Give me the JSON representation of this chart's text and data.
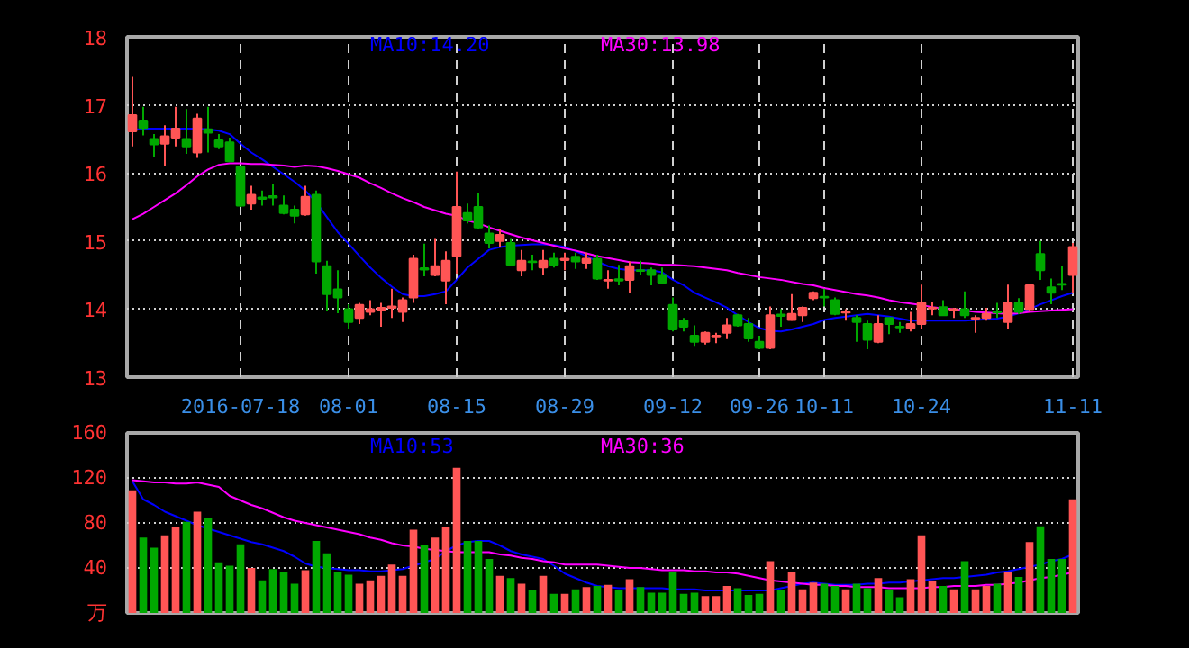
{
  "chart_data": [
    {
      "type": "candlestick",
      "categories": [
        null,
        null,
        null,
        null,
        null,
        null,
        null,
        null,
        null,
        null,
        "2016-07-18",
        null,
        null,
        null,
        null,
        null,
        null,
        null,
        null,
        null,
        "08-01",
        null,
        null,
        null,
        null,
        null,
        null,
        null,
        null,
        null,
        "08-15",
        null,
        null,
        null,
        null,
        null,
        null,
        null,
        null,
        null,
        "08-29",
        null,
        null,
        null,
        null,
        null,
        null,
        null,
        null,
        null,
        "09-12",
        null,
        null,
        null,
        null,
        null,
        null,
        null,
        "09-26",
        null,
        null,
        null,
        null,
        null,
        "10-11",
        null,
        null,
        null,
        null,
        null,
        null,
        null,
        null,
        "10-24",
        null,
        null,
        null,
        null,
        null,
        null,
        null,
        null,
        null,
        null,
        null,
        null,
        null,
        "11-11"
      ],
      "ohlc": [
        [
          16.61,
          17.41,
          16.39,
          16.85
        ],
        [
          16.77,
          16.97,
          16.55,
          16.66
        ],
        [
          16.5,
          16.57,
          16.24,
          16.42
        ],
        [
          16.43,
          16.7,
          16.1,
          16.54
        ],
        [
          16.52,
          16.97,
          16.39,
          16.65
        ],
        [
          16.5,
          16.94,
          16.28,
          16.39
        ],
        [
          16.3,
          16.87,
          16.22,
          16.8
        ],
        [
          16.64,
          16.97,
          16.3,
          16.59
        ],
        [
          16.48,
          16.57,
          16.35,
          16.39
        ],
        [
          16.45,
          16.52,
          16.16,
          16.17
        ],
        [
          16.09,
          16.1,
          15.5,
          15.52
        ],
        [
          15.55,
          15.81,
          15.46,
          15.68
        ],
        [
          15.64,
          15.74,
          15.52,
          15.62
        ],
        [
          15.66,
          15.83,
          15.52,
          15.64
        ],
        [
          15.52,
          15.67,
          15.39,
          15.41
        ],
        [
          15.46,
          15.52,
          15.26,
          15.37
        ],
        [
          15.39,
          15.81,
          15.37,
          15.65
        ],
        [
          15.68,
          15.74,
          14.52,
          14.7
        ],
        [
          14.63,
          14.71,
          13.98,
          14.22
        ],
        [
          14.29,
          14.57,
          13.94,
          14.17
        ],
        [
          14.0,
          14.07,
          13.7,
          13.81
        ],
        [
          13.87,
          14.09,
          13.78,
          14.06
        ],
        [
          13.96,
          14.13,
          13.91,
          14.0
        ],
        [
          13.99,
          14.09,
          13.74,
          14.02
        ],
        [
          14.02,
          14.3,
          13.87,
          14.04
        ],
        [
          13.96,
          14.17,
          13.81,
          14.13
        ],
        [
          14.17,
          14.8,
          14.09,
          14.74
        ],
        [
          14.6,
          14.96,
          14.48,
          14.58
        ],
        [
          14.5,
          15.03,
          14.48,
          14.63
        ],
        [
          14.42,
          14.85,
          14.07,
          14.71
        ],
        [
          14.78,
          16.02,
          14.52,
          15.5
        ],
        [
          15.41,
          15.55,
          15.26,
          15.3
        ],
        [
          15.5,
          15.7,
          15.17,
          15.2
        ],
        [
          15.11,
          15.23,
          14.89,
          14.97
        ],
        [
          15.0,
          15.17,
          14.91,
          15.09
        ],
        [
          14.97,
          15.03,
          14.63,
          14.65
        ],
        [
          14.57,
          14.87,
          14.48,
          14.71
        ],
        [
          14.7,
          14.8,
          14.57,
          14.69
        ],
        [
          14.61,
          14.87,
          14.5,
          14.71
        ],
        [
          14.74,
          14.83,
          14.61,
          14.65
        ],
        [
          14.72,
          14.83,
          14.57,
          14.74
        ],
        [
          14.77,
          14.83,
          14.59,
          14.7
        ],
        [
          14.68,
          14.83,
          14.59,
          14.74
        ],
        [
          14.74,
          14.8,
          14.43,
          14.45
        ],
        [
          14.42,
          14.57,
          14.3,
          14.43
        ],
        [
          14.44,
          14.65,
          14.35,
          14.42
        ],
        [
          14.43,
          14.7,
          14.24,
          14.63
        ],
        [
          14.57,
          14.71,
          14.5,
          14.56
        ],
        [
          14.57,
          14.61,
          14.35,
          14.5
        ],
        [
          14.5,
          14.61,
          14.37,
          14.39
        ],
        [
          14.06,
          14.17,
          13.67,
          13.7
        ],
        [
          13.83,
          13.87,
          13.67,
          13.74
        ],
        [
          13.61,
          13.76,
          13.46,
          13.52
        ],
        [
          13.52,
          13.67,
          13.48,
          13.65
        ],
        [
          13.6,
          13.65,
          13.5,
          13.61
        ],
        [
          13.65,
          13.87,
          13.56,
          13.76
        ],
        [
          13.91,
          13.93,
          13.74,
          13.76
        ],
        [
          13.78,
          13.87,
          13.52,
          13.57
        ],
        [
          13.52,
          13.61,
          13.41,
          13.43
        ],
        [
          13.43,
          14.04,
          13.41,
          13.91
        ],
        [
          13.92,
          14.0,
          13.74,
          13.9
        ],
        [
          13.84,
          14.22,
          13.83,
          13.93
        ],
        [
          13.91,
          14.04,
          13.81,
          14.02
        ],
        [
          14.16,
          14.26,
          14.13,
          14.24
        ],
        [
          14.18,
          14.3,
          14.04,
          14.17
        ],
        [
          14.13,
          14.17,
          13.91,
          13.93
        ],
        [
          13.95,
          14.0,
          13.83,
          13.96
        ],
        [
          13.87,
          13.91,
          13.52,
          13.81
        ],
        [
          13.78,
          13.83,
          13.41,
          13.55
        ],
        [
          13.52,
          13.91,
          13.5,
          13.78
        ],
        [
          13.87,
          13.87,
          13.63,
          13.78
        ],
        [
          13.74,
          13.81,
          13.65,
          13.73
        ],
        [
          13.72,
          13.96,
          13.67,
          13.78
        ],
        [
          13.78,
          14.36,
          13.7,
          14.09
        ],
        [
          14.01,
          14.1,
          13.91,
          14.02
        ],
        [
          14.03,
          14.13,
          13.9,
          13.91
        ],
        [
          13.99,
          14.02,
          13.87,
          14.0
        ],
        [
          14.0,
          14.26,
          13.87,
          13.91
        ],
        [
          13.86,
          13.91,
          13.65,
          13.87
        ],
        [
          13.87,
          14.02,
          13.83,
          13.93
        ],
        [
          13.96,
          14.09,
          13.87,
          13.95
        ],
        [
          13.81,
          14.36,
          13.7,
          14.09
        ],
        [
          14.09,
          14.16,
          13.93,
          13.96
        ],
        [
          14.0,
          14.35,
          13.98,
          14.35
        ],
        [
          14.81,
          15.0,
          14.43,
          14.57
        ],
        [
          14.32,
          14.45,
          14.07,
          14.24
        ],
        [
          14.37,
          14.63,
          14.28,
          14.36
        ],
        [
          14.5,
          14.97,
          14.24,
          14.91
        ]
      ],
      "colors": [
        "#ff5555",
        "#00a800",
        "#00a800",
        "#ff5555",
        "#ff5555",
        "#00a800",
        "#ff5555",
        "#00a800",
        "#00a800",
        "#00a800",
        "#00a800",
        "#ff5555",
        "#00a800",
        "#00a800",
        "#00a800",
        "#00a800",
        "#ff5555",
        "#00a800",
        "#00a800",
        "#00a800",
        "#00a800",
        "#ff5555",
        "#ff5555",
        "#ff5555",
        "#ff5555",
        "#ff5555",
        "#ff5555",
        "#00a800",
        "#ff5555",
        "#ff5555",
        "#ff5555",
        "#00a800",
        "#00a800",
        "#00a800",
        "#ff5555",
        "#00a800",
        "#ff5555",
        "#00a800",
        "#ff5555",
        "#00a800",
        "#ff5555",
        "#00a800",
        "#ff5555",
        "#00a800",
        "#ff5555",
        "#00a800",
        "#ff5555",
        "#00a800",
        "#00a800",
        "#00a800",
        "#00a800",
        "#00a800",
        "#00a800",
        "#ff5555",
        "#ff5555",
        "#ff5555",
        "#00a800",
        "#00a800",
        "#00a800",
        "#ff5555",
        "#00a800",
        "#ff5555",
        "#ff5555",
        "#ff5555",
        "#00a800",
        "#00a800",
        "#ff5555",
        "#00a800",
        "#00a800",
        "#ff5555",
        "#00a800",
        "#00a800",
        "#ff5555",
        "#ff5555",
        "#ff5555",
        "#00a800",
        "#ff5555",
        "#00a800",
        "#ff5555",
        "#ff5555",
        "#00a800",
        "#ff5555",
        "#00a800",
        "#ff5555",
        "#00a800",
        "#00a800",
        "#00a800",
        "#ff5555"
      ],
      "series": [
        {
          "name": "MA10:14.20",
          "type": "line",
          "color": "#0000ff",
          "values": [
            16.63,
            16.65,
            16.65,
            16.65,
            16.65,
            16.65,
            16.65,
            16.64,
            16.62,
            16.57,
            16.43,
            16.3,
            16.2,
            16.09,
            15.98,
            15.87,
            15.74,
            15.57,
            15.35,
            15.13,
            14.96,
            14.78,
            14.61,
            14.46,
            14.33,
            14.22,
            14.19,
            14.19,
            14.22,
            14.26,
            14.43,
            14.61,
            14.74,
            14.87,
            14.91,
            14.93,
            14.94,
            14.95,
            14.95,
            14.94,
            14.91,
            14.85,
            14.78,
            14.7,
            14.63,
            14.59,
            14.57,
            14.57,
            14.57,
            14.54,
            14.43,
            14.35,
            14.24,
            14.17,
            14.1,
            14.02,
            13.91,
            13.81,
            13.72,
            13.68,
            13.67,
            13.7,
            13.74,
            13.78,
            13.84,
            13.87,
            13.89,
            13.91,
            13.93,
            13.91,
            13.89,
            13.86,
            13.83,
            13.83,
            13.83,
            13.83,
            13.83,
            13.83,
            13.84,
            13.85,
            13.86,
            13.89,
            13.94,
            14.0,
            14.07,
            14.13,
            14.19,
            14.24
          ]
        },
        {
          "name": "MA30:13.98",
          "type": "line",
          "color": "#ff00ff",
          "values": [
            15.32,
            15.4,
            15.5,
            15.6,
            15.7,
            15.82,
            15.95,
            16.05,
            16.12,
            16.14,
            16.14,
            16.13,
            16.13,
            16.12,
            16.11,
            16.09,
            16.11,
            16.1,
            16.07,
            16.03,
            15.98,
            15.93,
            15.85,
            15.78,
            15.7,
            15.63,
            15.57,
            15.5,
            15.45,
            15.4,
            15.37,
            15.3,
            15.26,
            15.2,
            15.15,
            15.1,
            15.05,
            15.01,
            14.97,
            14.93,
            14.89,
            14.86,
            14.82,
            14.78,
            14.75,
            14.72,
            14.69,
            14.68,
            14.67,
            14.65,
            14.65,
            14.64,
            14.63,
            14.61,
            14.59,
            14.57,
            14.53,
            14.5,
            14.47,
            14.45,
            14.43,
            14.4,
            14.37,
            14.35,
            14.31,
            14.28,
            14.25,
            14.22,
            14.2,
            14.17,
            14.13,
            14.1,
            14.08,
            14.06,
            14.03,
            14.01,
            14.0,
            13.98,
            13.96,
            13.95,
            13.94,
            13.93,
            13.94,
            13.96,
            13.97,
            13.98,
            13.99,
            14.0
          ]
        }
      ],
      "ylim": [
        13,
        18
      ],
      "yticks": [
        13,
        14,
        15,
        16,
        17,
        18
      ],
      "grid": true
    },
    {
      "type": "bar",
      "categories": [
        null,
        null,
        null,
        null,
        null,
        null,
        null,
        null,
        null,
        null,
        null,
        null,
        null,
        null,
        null,
        null,
        null,
        null,
        null,
        null,
        null,
        null,
        null,
        null,
        null,
        null,
        null,
        null,
        null,
        null,
        null,
        null,
        null,
        null,
        null,
        null,
        null,
        null,
        null,
        null,
        null,
        null,
        null,
        null,
        null,
        null,
        null,
        null,
        null,
        null,
        null,
        null,
        null,
        null,
        null,
        null,
        null,
        null,
        null,
        null,
        null,
        null,
        null,
        null,
        null,
        null,
        null,
        null,
        null,
        null,
        null,
        null,
        null,
        null,
        null,
        null,
        null,
        null,
        null,
        null,
        null,
        null,
        null,
        null,
        null,
        null,
        null,
        null
      ],
      "values": [
        109,
        67,
        58,
        69,
        76,
        81,
        90,
        84,
        45,
        42,
        61,
        40,
        29,
        39,
        36,
        26,
        38,
        64,
        53,
        36,
        34,
        26,
        29,
        33,
        43,
        33,
        74,
        60,
        67,
        76,
        129,
        64,
        64,
        48,
        33,
        31,
        26,
        20,
        33,
        17,
        17,
        21,
        23,
        24,
        25,
        20,
        30,
        23,
        18,
        18,
        36,
        17,
        18,
        15,
        15,
        24,
        22,
        16,
        17,
        46,
        20,
        36,
        21,
        27,
        26,
        24,
        21,
        26,
        22,
        31,
        21,
        14,
        30,
        69,
        28,
        24,
        21,
        46,
        21,
        24,
        26,
        36,
        32,
        63,
        77,
        48,
        48,
        101
      ],
      "colors": [
        "#ff5555",
        "#00a800",
        "#00a800",
        "#ff5555",
        "#ff5555",
        "#00a800",
        "#ff5555",
        "#00a800",
        "#00a800",
        "#00a800",
        "#00a800",
        "#ff5555",
        "#00a800",
        "#00a800",
        "#00a800",
        "#00a800",
        "#ff5555",
        "#00a800",
        "#00a800",
        "#00a800",
        "#00a800",
        "#ff5555",
        "#ff5555",
        "#ff5555",
        "#ff5555",
        "#ff5555",
        "#ff5555",
        "#00a800",
        "#ff5555",
        "#ff5555",
        "#ff5555",
        "#00a800",
        "#00a800",
        "#00a800",
        "#ff5555",
        "#00a800",
        "#ff5555",
        "#00a800",
        "#ff5555",
        "#00a800",
        "#ff5555",
        "#00a800",
        "#ff5555",
        "#00a800",
        "#ff5555",
        "#00a800",
        "#ff5555",
        "#00a800",
        "#00a800",
        "#00a800",
        "#00a800",
        "#00a800",
        "#00a800",
        "#ff5555",
        "#ff5555",
        "#ff5555",
        "#00a800",
        "#00a800",
        "#00a800",
        "#ff5555",
        "#00a800",
        "#ff5555",
        "#ff5555",
        "#ff5555",
        "#00a800",
        "#00a800",
        "#ff5555",
        "#00a800",
        "#00a800",
        "#ff5555",
        "#00a800",
        "#00a800",
        "#ff5555",
        "#ff5555",
        "#ff5555",
        "#00a800",
        "#ff5555",
        "#00a800",
        "#ff5555",
        "#ff5555",
        "#00a800",
        "#ff5555",
        "#00a800",
        "#ff5555",
        "#00a800",
        "#00a800",
        "#00a800",
        "#ff5555"
      ],
      "series": [
        {
          "name": "MA10:53",
          "type": "line",
          "color": "#0000ff",
          "values": [
            117,
            101,
            96,
            90,
            86,
            82,
            78,
            75,
            72,
            69,
            66,
            63,
            61,
            58,
            55,
            50,
            44,
            41,
            40,
            39,
            38,
            38,
            37,
            37,
            38,
            39,
            42,
            45,
            48,
            55,
            60,
            63,
            64,
            64,
            60,
            55,
            52,
            50,
            48,
            42,
            35,
            31,
            27,
            24,
            23,
            22,
            22,
            22,
            22,
            22,
            21,
            21,
            21,
            20,
            20,
            20,
            20,
            20,
            20,
            20,
            22,
            24,
            26,
            27,
            26,
            25,
            25,
            25,
            26,
            26,
            27,
            27,
            28,
            29,
            30,
            31,
            31,
            32,
            33,
            34,
            36,
            37,
            39,
            41,
            43,
            46,
            48,
            52
          ]
        },
        {
          "name": "MA30:36",
          "type": "line",
          "color": "#ff00ff",
          "values": [
            118,
            117,
            116,
            116,
            115,
            115,
            116,
            114,
            112,
            104,
            100,
            96,
            93,
            89,
            85,
            82,
            80,
            78,
            76,
            74,
            72,
            70,
            67,
            65,
            62,
            60,
            59,
            57,
            56,
            55,
            54,
            54,
            54,
            54,
            52,
            51,
            49,
            48,
            46,
            45,
            43,
            43,
            43,
            43,
            42,
            41,
            40,
            40,
            39,
            38,
            38,
            38,
            37,
            37,
            36,
            36,
            35,
            33,
            31,
            29,
            28,
            27,
            26,
            25,
            25,
            24,
            24,
            23,
            23,
            23,
            22,
            22,
            22,
            22,
            23,
            23,
            24,
            24,
            24,
            25,
            25,
            26,
            27,
            29,
            31,
            32,
            34,
            36
          ]
        }
      ],
      "ylim": [
        0,
        160
      ],
      "yticks": [
        {
          "value": 0,
          "label": "万"
        },
        40,
        80,
        120,
        160
      ],
      "grid": true,
      "tick_labels": "y"
    }
  ]
}
